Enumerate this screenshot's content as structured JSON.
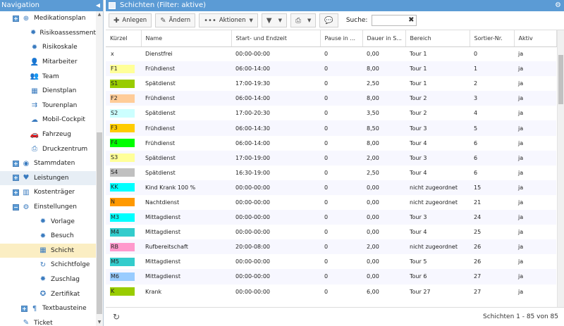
{
  "navigation": {
    "title": "Navigation",
    "items": [
      {
        "label": "Medikationsplan",
        "icon": "pill-icon",
        "indent": 0,
        "expander": "+"
      },
      {
        "label": "Risikoassessment",
        "icon": "gear-icon",
        "indent": 1
      },
      {
        "label": "Risikoskale",
        "icon": "gear-icon",
        "indent": 1
      },
      {
        "label": "Mitarbeiter",
        "icon": "person-icon",
        "indent": 1
      },
      {
        "label": "Team",
        "icon": "team-icon",
        "indent": 1
      },
      {
        "label": "Dienstplan",
        "icon": "calendar-icon",
        "indent": 1
      },
      {
        "label": "Tourenplan",
        "icon": "route-icon",
        "indent": 1
      },
      {
        "label": "Mobil-Cockpit",
        "icon": "cloud-icon",
        "indent": 1
      },
      {
        "label": "Fahrzeug",
        "icon": "car-icon",
        "indent": 1
      },
      {
        "label": "Druckzentrum",
        "icon": "printer-icon",
        "indent": 1
      },
      {
        "label": "Stammdaten",
        "icon": "database-icon",
        "indent": 0,
        "expander": "+"
      },
      {
        "label": "Leistungen",
        "icon": "heart-icon",
        "indent": 0,
        "expander": "+",
        "state": "hover"
      },
      {
        "label": "Kostenträger",
        "icon": "building-icon",
        "indent": 0,
        "expander": "+"
      },
      {
        "label": "Einstellungen",
        "icon": "settings-icon",
        "indent": 0,
        "expander": "−"
      },
      {
        "label": "Vorlage",
        "icon": "gear-icon",
        "indent": 2
      },
      {
        "label": "Besuch",
        "icon": "gear-icon",
        "indent": 2
      },
      {
        "label": "Schicht",
        "icon": "grid-icon",
        "indent": 2,
        "state": "selected"
      },
      {
        "label": "Schichtfolge",
        "icon": "refresh-icon",
        "indent": 2
      },
      {
        "label": "Zuschlag",
        "icon": "gear-icon",
        "indent": 2
      },
      {
        "label": "Zertifikat",
        "icon": "award-icon",
        "indent": 2
      },
      {
        "label": "Textbausteine",
        "icon": "text-icon",
        "indent": 1,
        "expander": "+"
      },
      {
        "label": "Ticket",
        "icon": "ticket-icon",
        "indent": 0
      }
    ]
  },
  "main": {
    "title": "Schichten (Filter: aktive)",
    "toolbar": {
      "add_label": "Anlegen",
      "edit_label": "Ändern",
      "actions_label": "Aktionen",
      "search_label": "Suche:",
      "search_value": ""
    },
    "columns": [
      "Kürzel",
      "Name",
      "Start- und Endzeit",
      "Pause in ...",
      "Dauer in S...",
      "Bereich",
      "Sortier-Nr.",
      "Aktiv"
    ],
    "rows": [
      {
        "code": "x",
        "color": "#ffffff",
        "name": "Dienstfrei",
        "time": "00:00-00:00",
        "pause": "0",
        "duration": "0,00",
        "area": "Tour 1",
        "sort": "0",
        "active": "ja"
      },
      {
        "code": "F1",
        "color": "#ffff99",
        "name": "Frühdienst",
        "time": "06:00-14:00",
        "pause": "0",
        "duration": "8,00",
        "area": "Tour 1",
        "sort": "1",
        "active": "ja"
      },
      {
        "code": "S1",
        "color": "#99cc00",
        "name": "Spätdienst",
        "time": "17:00-19:30",
        "pause": "0",
        "duration": "2,50",
        "area": "Tour 1",
        "sort": "2",
        "active": "ja"
      },
      {
        "code": "F2",
        "color": "#ffcc99",
        "name": "Frühdienst",
        "time": "06:00-14:00",
        "pause": "0",
        "duration": "8,00",
        "area": "Tour 2",
        "sort": "3",
        "active": "ja"
      },
      {
        "code": "S2",
        "color": "#ccffff",
        "name": "Spätdienst",
        "time": "17:00-20:30",
        "pause": "0",
        "duration": "3,50",
        "area": "Tour 2",
        "sort": "4",
        "active": "ja"
      },
      {
        "code": "F3",
        "color": "#ffcc00",
        "name": "Frühdienst",
        "time": "06:00-14:30",
        "pause": "0",
        "duration": "8,50",
        "area": "Tour 3",
        "sort": "5",
        "active": "ja"
      },
      {
        "code": "F4",
        "color": "#00ff00",
        "name": "Frühdienst",
        "time": "06:00-14:00",
        "pause": "0",
        "duration": "8,00",
        "area": "Tour 4",
        "sort": "6",
        "active": "ja"
      },
      {
        "code": "S3",
        "color": "#ffff99",
        "name": "Spätdienst",
        "time": "17:00-19:00",
        "pause": "0",
        "duration": "2,00",
        "area": "Tour 3",
        "sort": "6",
        "active": "ja"
      },
      {
        "code": "S4",
        "color": "#c0c0c0",
        "name": "Spätdienst",
        "time": "16:30-19:00",
        "pause": "0",
        "duration": "2,50",
        "area": "Tour 4",
        "sort": "6",
        "active": "ja"
      },
      {
        "code": "KK",
        "color": "#00ffff",
        "name": "Kind Krank 100 %",
        "time": "00:00-00:00",
        "pause": "0",
        "duration": "0,00",
        "area": "nicht zugeordnet",
        "sort": "15",
        "active": "ja"
      },
      {
        "code": "N",
        "color": "#ff9900",
        "name": "Nachtdienst",
        "time": "00:00-00:00",
        "pause": "0",
        "duration": "0,00",
        "area": "nicht zugeordnet",
        "sort": "21",
        "active": "ja"
      },
      {
        "code": "M3",
        "color": "#00ffff",
        "name": "Mittagdienst",
        "time": "00:00-00:00",
        "pause": "0",
        "duration": "0,00",
        "area": "Tour 3",
        "sort": "24",
        "active": "ja"
      },
      {
        "code": "M4",
        "color": "#33cccc",
        "name": "Mittagdienst",
        "time": "00:00-00:00",
        "pause": "0",
        "duration": "0,00",
        "area": "Tour 4",
        "sort": "25",
        "active": "ja"
      },
      {
        "code": "RB",
        "color": "#ff99cc",
        "name": "Rufbereitschaft",
        "time": "20:00-08:00",
        "pause": "0",
        "duration": "2,00",
        "area": "nicht zugeordnet",
        "sort": "26",
        "active": "ja"
      },
      {
        "code": "M5",
        "color": "#33cccc",
        "name": "Mittagdienst",
        "time": "00:00-00:00",
        "pause": "0",
        "duration": "0,00",
        "area": "Tour 5",
        "sort": "26",
        "active": "ja"
      },
      {
        "code": "M6",
        "color": "#99ccff",
        "name": "Mittagdienst",
        "time": "00:00-00:00",
        "pause": "0",
        "duration": "0,00",
        "area": "Tour 6",
        "sort": "27",
        "active": "ja"
      },
      {
        "code": "K",
        "color": "#99cc00",
        "name": "Krank",
        "time": "00:00-00:00",
        "pause": "0",
        "duration": "6,00",
        "area": "Tour 27",
        "sort": "27",
        "active": "ja"
      }
    ],
    "footer": {
      "count": "Schichten 1 - 85 von 85"
    }
  }
}
